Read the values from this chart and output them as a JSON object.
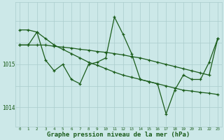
{
  "background_color": "#cce8e8",
  "grid_color": "#aacccc",
  "line_color": "#1a5c1a",
  "title": "Graphe pression niveau de la mer (hPa)",
  "xlim": [
    -0.5,
    23.5
  ],
  "ylim": [
    1013.55,
    1016.45
  ],
  "yticks": [
    1014,
    1015
  ],
  "xticks": [
    0,
    1,
    2,
    3,
    4,
    5,
    6,
    7,
    8,
    9,
    10,
    11,
    12,
    13,
    14,
    15,
    16,
    17,
    18,
    19,
    20,
    21,
    22,
    23
  ],
  "series1_x": [
    0,
    1,
    2,
    3,
    4,
    5,
    6,
    7,
    8,
    9,
    10,
    11,
    12,
    13,
    14,
    15,
    16,
    17,
    18,
    19,
    20,
    21,
    22,
    23
  ],
  "series1_y": [
    1015.45,
    1015.45,
    1015.45,
    1015.45,
    1015.42,
    1015.4,
    1015.38,
    1015.35,
    1015.33,
    1015.3,
    1015.28,
    1015.25,
    1015.22,
    1015.18,
    1015.15,
    1015.1,
    1015.05,
    1015.0,
    1014.95,
    1014.9,
    1014.85,
    1014.8,
    1014.75,
    1015.6
  ],
  "series2_x": [
    0,
    1,
    2,
    3,
    4,
    5,
    6,
    7,
    8,
    9,
    10,
    11,
    12,
    13,
    14,
    15,
    16,
    17,
    18,
    19,
    20,
    21,
    22,
    23
  ],
  "series2_y": [
    1015.8,
    1015.8,
    1015.75,
    1015.6,
    1015.45,
    1015.35,
    1015.25,
    1015.15,
    1015.05,
    1014.98,
    1014.9,
    1014.82,
    1014.75,
    1014.7,
    1014.65,
    1014.6,
    1014.55,
    1014.5,
    1014.45,
    1014.4,
    1014.38,
    1014.35,
    1014.33,
    1014.3
  ],
  "series3_x": [
    0,
    1,
    2,
    3,
    4,
    5,
    6,
    7,
    8,
    9,
    10,
    11,
    12,
    13,
    14,
    15,
    16,
    17,
    18,
    19,
    20,
    21,
    22,
    23
  ],
  "series3_y": [
    1015.45,
    1015.45,
    1015.75,
    1015.1,
    1014.85,
    1015.0,
    1014.65,
    1014.55,
    1015.0,
    1015.05,
    1015.15,
    1016.1,
    1015.7,
    1015.25,
    1014.65,
    1014.6,
    1014.55,
    1013.85,
    1014.4,
    1014.75,
    1014.65,
    1014.65,
    1015.05,
    1015.6
  ]
}
